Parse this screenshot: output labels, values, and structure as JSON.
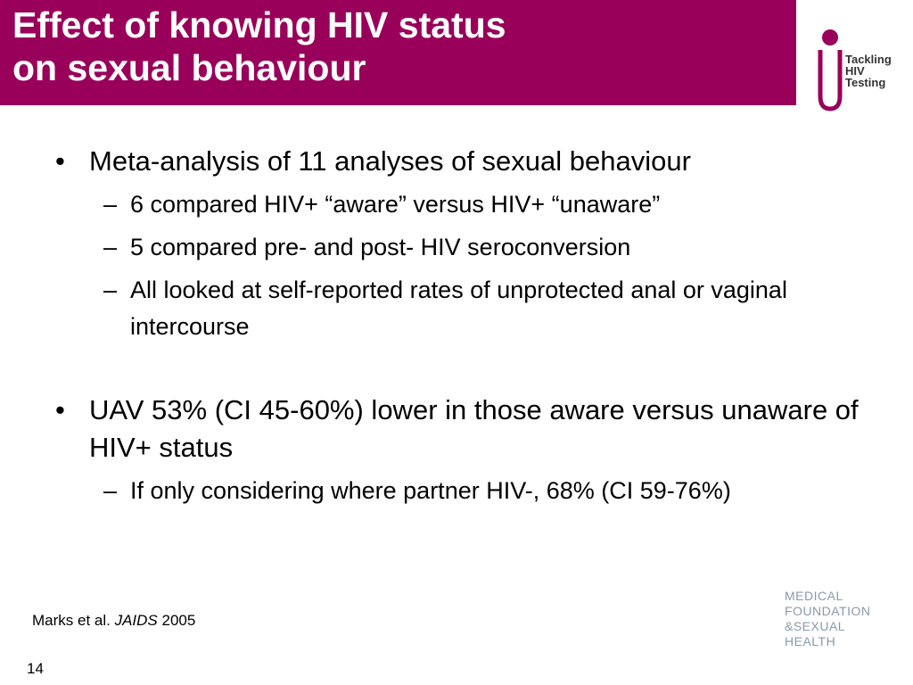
{
  "header": {
    "title_lines": [
      "Effect of knowing HIV status",
      "on sexual behaviour"
    ],
    "logo": [
      "Tackling",
      "HIV",
      "Testing"
    ]
  },
  "bullets": [
    {
      "text": "Meta-analysis of 11 analyses of sexual behaviour",
      "sub": [
        "6 compared HIV+ “aware” versus HIV+ “unaware”",
        "5 compared pre- and post- HIV seroconversion",
        "All looked at self-reported rates of unprotected anal or vaginal intercourse"
      ]
    },
    {
      "text": "UAV 53% (CI 45-60%) lower in those aware versus unaware of HIV+ status",
      "sub": [
        "If only considering where partner HIV-, 68% (CI 59-76%)"
      ]
    }
  ],
  "citation": {
    "authors": "Marks et al.",
    "journal": "JAIDS",
    "year": "2005"
  },
  "page_number": "14",
  "footer_logo": {
    "lines": [
      "MEDICAL",
      "FOUNDATION",
      "&SEXUAL",
      "HEALTH"
    ]
  }
}
